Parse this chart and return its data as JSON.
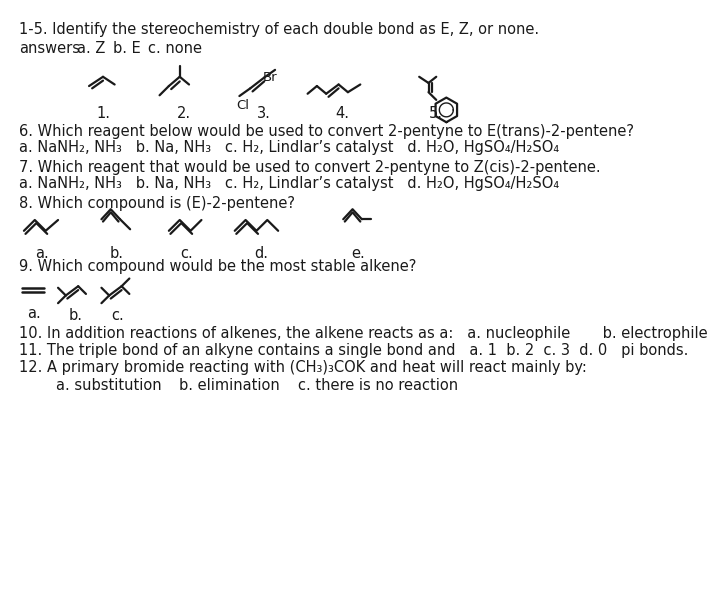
{
  "bg_color": "#ffffff",
  "text_color": "#1a1a1a",
  "fig_width": 6.59,
  "fig_height": 7.61,
  "title": "1-5. Identify the stereochemistry of each double bond as E, Z, or none.",
  "q6": "6. Which reagent below would be used to convert 2-pentyne to E(trans)-2-pentene?",
  "q6_ans": "a. NaNH₂, NH₃   b. Na, NH₃   c. H₂, Lindlar’s catalyst   d. H₂O, HgSO₄/H₂SO₄",
  "q7": "7. Which reagent that would be used to convert 2-pentyne to Z(cis)-2-pentene.",
  "q7_ans": "a. NaNH₂, NH₃   b. Na, NH₃   c. H₂, Lindlar’s catalyst   d. H₂O, HgSO₄/H₂SO₄",
  "q8": "8. Which compound is (E)-2-pentene?",
  "q9": "9. Which compound would be the most stable alkene?",
  "q10": "10. In addition reactions of alkenes, the alkene reacts as a:   a. nucleophile       b. electrophile",
  "q11": "11. The triple bond of an alkyne contains a single bond and   a. 1  b. 2  c. 3  d. 0   pi bonds.",
  "q12": "12. A primary bromide reacting with (CH₃)₃COK and heat will react mainly by:",
  "q12_ans_a": "a. substitution",
  "q12_ans_b": "b. elimination",
  "q12_ans_c": "c. there is no reaction"
}
